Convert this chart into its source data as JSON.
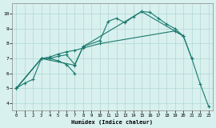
{
  "xlabel": "Humidex (Indice chaleur)",
  "xlim": [
    -0.5,
    23.5
  ],
  "ylim": [
    3.5,
    10.7
  ],
  "yticks": [
    4,
    5,
    6,
    7,
    8,
    9,
    10
  ],
  "xticks": [
    0,
    1,
    2,
    3,
    4,
    5,
    6,
    7,
    8,
    9,
    10,
    11,
    12,
    13,
    14,
    15,
    16,
    17,
    18,
    19,
    20,
    21,
    22,
    23
  ],
  "bg_color": "#d8f0ee",
  "line_color": "#1a7a6e",
  "grid_color": "#b0d8d4",
  "curve1_x": [
    0,
    1,
    2,
    3,
    4,
    5,
    6,
    7
  ],
  "curve1_y": [
    5.0,
    5.35,
    5.6,
    7.0,
    7.0,
    6.85,
    6.6,
    6.0
  ],
  "curve2_x": [
    0,
    3,
    4,
    5,
    6,
    7,
    8,
    10,
    11,
    12,
    13,
    14,
    15,
    16,
    17,
    18,
    19,
    20,
    21
  ],
  "curve2_y": [
    5.0,
    7.0,
    7.0,
    7.15,
    7.25,
    6.6,
    7.8,
    8.2,
    9.5,
    9.7,
    9.4,
    9.8,
    10.15,
    10.1,
    9.7,
    9.3,
    9.0,
    8.5,
    7.0
  ],
  "curve3_x": [
    0,
    3,
    4,
    5,
    6,
    7,
    8,
    10,
    19,
    20
  ],
  "curve3_y": [
    5.0,
    7.0,
    7.1,
    7.3,
    7.45,
    7.55,
    7.7,
    8.0,
    8.85,
    8.5
  ],
  "curve4_x": [
    0,
    3,
    7,
    8,
    15,
    20,
    21,
    22,
    23
  ],
  "curve4_y": [
    5.0,
    7.0,
    6.55,
    7.8,
    10.15,
    8.5,
    7.0,
    5.3,
    3.8
  ]
}
